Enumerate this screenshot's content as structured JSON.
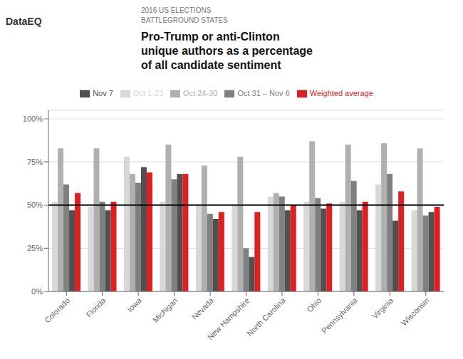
{
  "chart_data": {
    "type": "bar",
    "title": "Pro-Trump or anti-Clinton\nunique authors as a percentage\nof all candidate sentiment",
    "subtitle": "2016 US ELECTIONS\nBATTLEGROUND STATES",
    "annotations": [
      {
        "text": "DataEQ"
      }
    ],
    "categories": [
      "Colorado",
      "Florida",
      "Iowa",
      "Michigan",
      "Nevada",
      "New Hampshire",
      "North Carolina",
      "Ohio",
      "Pennsylvania",
      "Virginia",
      "Wisconsin"
    ],
    "series": [
      {
        "name": "Oct 1-23",
        "color": "#d8d8d8",
        "values": [
          52,
          49,
          78,
          52,
          50,
          50,
          55,
          52,
          52,
          62,
          47
        ]
      },
      {
        "name": "Oct 24-30",
        "color": "#b0b0b0",
        "values": [
          83,
          83,
          68,
          85,
          73,
          78,
          57,
          87,
          85,
          86,
          83
        ]
      },
      {
        "name": "Oct 31 – Nov 6",
        "color": "#808080",
        "values": [
          62,
          52,
          63,
          65,
          45,
          25,
          55,
          54,
          64,
          68,
          44
        ]
      },
      {
        "name": "Nov 7",
        "color": "#505050",
        "values": [
          47,
          47,
          72,
          68,
          42,
          20,
          47,
          48,
          47,
          41,
          46
        ]
      },
      {
        "name": "Weighted average",
        "color": "#e02020",
        "values": [
          57,
          52,
          69,
          68,
          46,
          46,
          50,
          51,
          52,
          58,
          49
        ]
      }
    ],
    "ylim": [
      0,
      105
    ],
    "yticks": [
      {
        "value": 0,
        "label": "0%"
      },
      {
        "value": 25,
        "label": "25%"
      },
      {
        "value": 50,
        "label": "50%"
      },
      {
        "value": 75,
        "label": "75%"
      },
      {
        "value": 100,
        "label": "100%"
      }
    ],
    "reference_lines": [
      {
        "y": 50,
        "color": "#000000"
      }
    ],
    "grid": true
  }
}
